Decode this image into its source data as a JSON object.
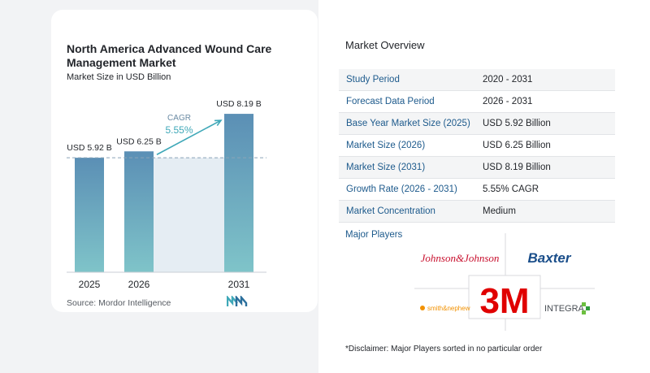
{
  "chart_data": {
    "type": "bar",
    "title": "North America Advanced Wound Care Management Market",
    "subtitle": "Market Size in USD Billion",
    "categories": [
      "2025",
      "2026",
      "2031"
    ],
    "values": [
      5.92,
      6.25,
      8.19
    ],
    "value_labels": [
      "USD 5.92 B",
      "USD 6.25 B",
      "USD 8.19 B"
    ],
    "cagr_label": "CAGR",
    "cagr_value": "5.55%",
    "ylim": [
      0,
      8.5
    ],
    "grid": false,
    "colors": {
      "bar_top": "#5b8fb5",
      "bar_bottom": "#7fc4c9",
      "shade": "#e5edf3",
      "accent": "#3fa8b8",
      "cagr_text": "#6a8aa3"
    }
  },
  "source_text": "Source: Mordor Intelligence",
  "logo_icon": "mordor-intelligence-logo-icon",
  "overview": {
    "title": "Market Overview",
    "rows": [
      {
        "label": "Study Period",
        "value": "2020 - 2031"
      },
      {
        "label": "Forecast Data Period",
        "value": "2026 - 2031"
      },
      {
        "label": "Base Year Market Size (2025)",
        "value": "USD 5.92 Billion"
      },
      {
        "label": "Market Size (2026)",
        "value": "USD 6.25 Billion"
      },
      {
        "label": "Market Size (2031)",
        "value": "USD 8.19 Billion"
      },
      {
        "label": "Growth Rate (2026 - 2031)",
        "value": "5.55% CAGR"
      },
      {
        "label": "Market Concentration",
        "value": "Medium"
      }
    ]
  },
  "players": {
    "title": "Major Players",
    "logos": {
      "jnj": "Johnson&Johnson",
      "baxter": "Baxter",
      "mmm": "3M",
      "smith": "smith&nephew",
      "integra": "INTEGRA"
    }
  },
  "disclaimer": "*Disclaimer: Major Players sorted in no particular order"
}
